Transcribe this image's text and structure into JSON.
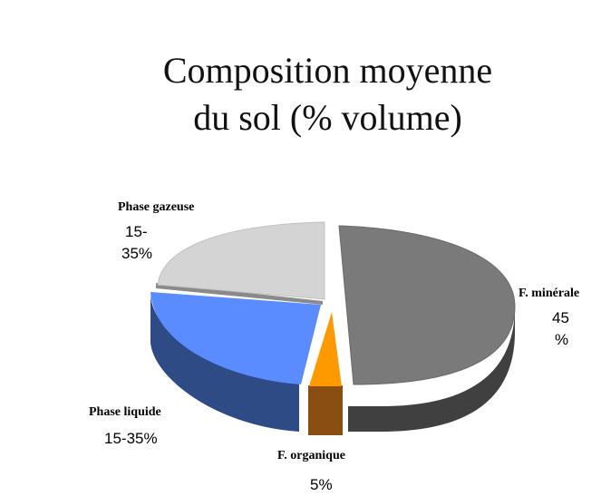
{
  "title_line1": "Composition moyenne",
  "title_line2": "du sol  (% volume)",
  "chart_data": {
    "type": "pie",
    "style": "3d-exploded",
    "slices": [
      {
        "label": "F. minérale",
        "value_label": "45 %",
        "value": 45,
        "color": "#7a7a7a"
      },
      {
        "label": "F. organique",
        "value_label": "5%",
        "value": 5,
        "color": "#ff9900"
      },
      {
        "label": "Phase liquide",
        "value_label": "15-35%",
        "value": 25,
        "color": "#5b8cff"
      },
      {
        "label": "Phase gazeuse",
        "value_label": "15-35%",
        "value": 25,
        "color": "#d4d4d4"
      }
    ]
  }
}
